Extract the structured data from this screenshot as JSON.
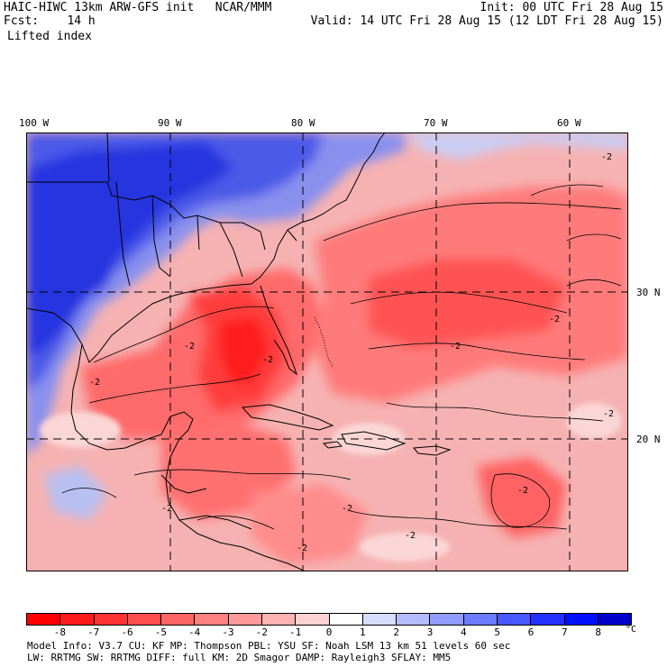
{
  "header": {
    "model_line": "HAIC-HIWC 13km ARW-GFS init   NCAR/MMM",
    "fcst_line": "Fcst:    14 h",
    "init_line": "Init: 00 UTC Fri 28 Aug 15",
    "valid_line": "Valid: 14 UTC Fri 28 Aug 15 (12 LDT Fri 28 Aug 15)",
    "field": "Lifted index"
  },
  "axes": {
    "lon_labels": [
      "100 W",
      "90 W",
      "80 W",
      "70 W",
      "60 W"
    ],
    "lat_labels": [
      "30 N",
      "20 N"
    ]
  },
  "map": {
    "contour_labels": [
      "-2",
      "-2",
      "-2",
      "-2",
      "-2",
      "-2",
      "-2",
      "-2",
      "-2",
      "-2",
      "-2",
      "-2"
    ],
    "background_color": "#f6b8b8",
    "cold_color": "#2f3fe0",
    "warm_color": "#ff2020"
  },
  "colorbar": {
    "ticks": [
      "-8",
      "-7",
      "-6",
      "-5",
      "-4",
      "-3",
      "-2",
      "-1",
      "0",
      "1",
      "2",
      "3",
      "4",
      "5",
      "6",
      "7",
      "8"
    ],
    "unit": "°C",
    "colors": [
      "#ff0000",
      "#ff1a1a",
      "#ff3333",
      "#ff4d4d",
      "#ff6666",
      "#ff8080",
      "#ff9a9a",
      "#ffb4b4",
      "#ffd2d2",
      "#ffffff",
      "#d8dcff",
      "#b4bcff",
      "#909cff",
      "#6c7cff",
      "#4858ff",
      "#2430ff",
      "#0010ff",
      "#0000cc"
    ]
  },
  "model_info": {
    "line1": "Model Info: V3.7      CU: KF        MP: Thompson     PBL: YSU       SF: Noah LSM    13 km   51 levels   60 sec",
    "line2": "         LW: RRTMG    SW: RRTMG  DIFF: full    KM: 2D Smagor DAMP: Rayleigh3   SFLAY: MM5"
  }
}
